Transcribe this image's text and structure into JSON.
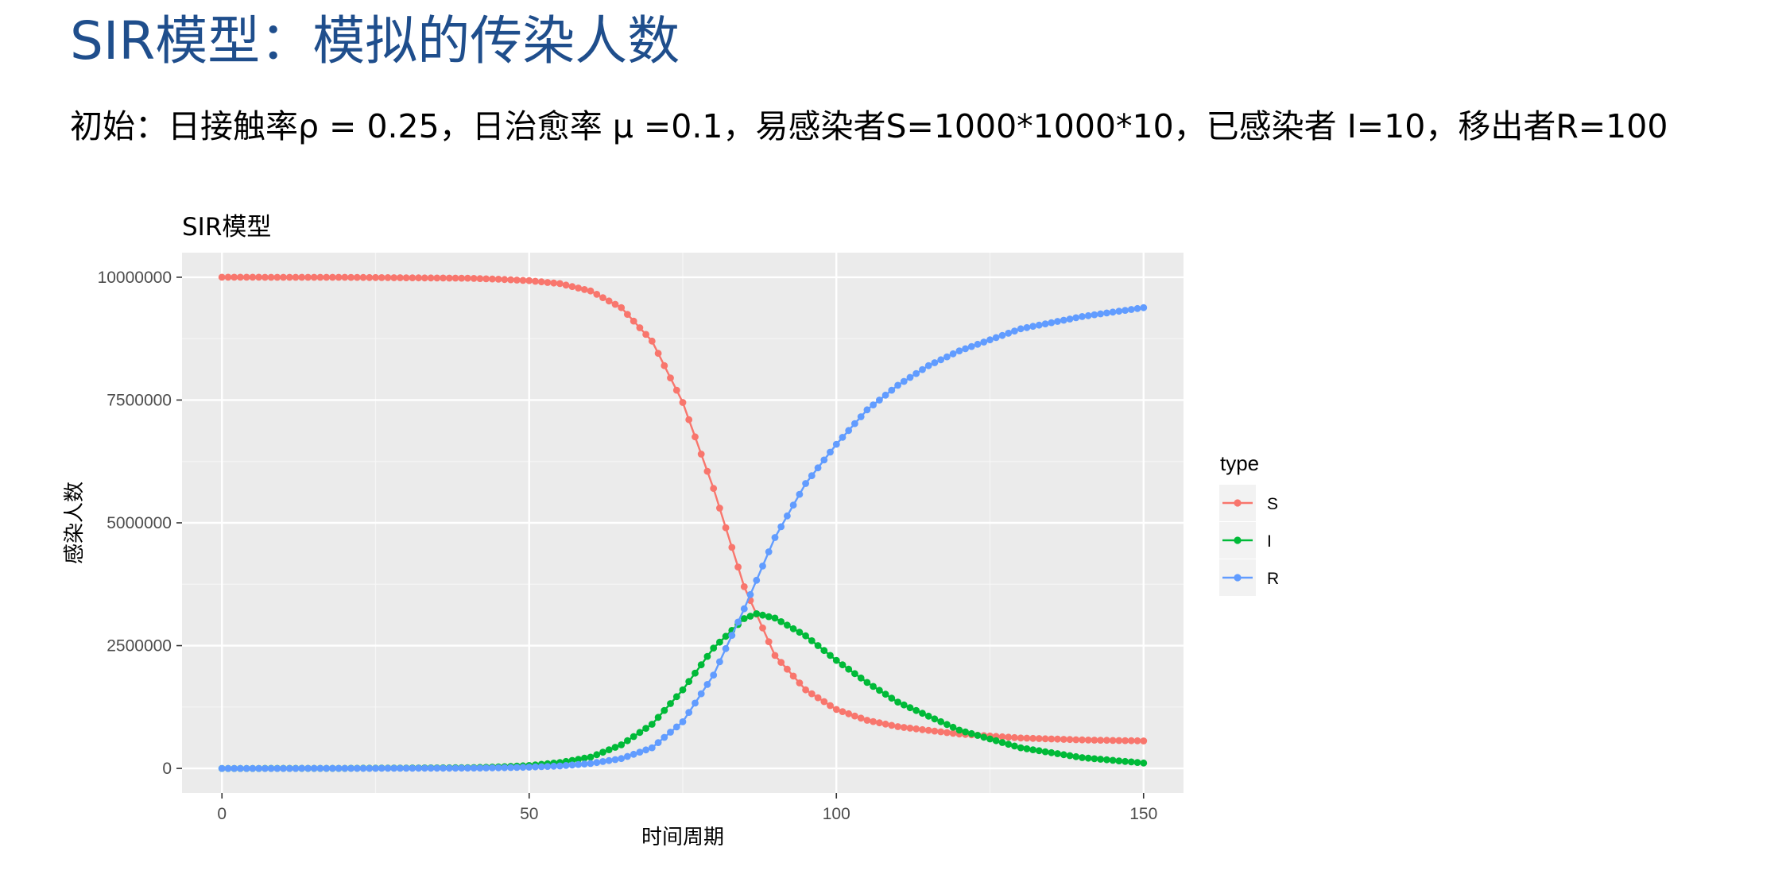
{
  "slide": {
    "title": "SIR模型：模拟的传染人数",
    "subtitle": "初始：日接触率ρ = 0.25，日治愈率 μ =0.1，易感染者S=1000*1000*10，已感染者 I=10，移出者R=100"
  },
  "chart_data": {
    "type": "line",
    "title": "SIR模型",
    "xlabel": "时间周期",
    "ylabel": "感染人数",
    "xlim": [
      -6.5,
      156.5
    ],
    "ylim": [
      -500000,
      10500000
    ],
    "x_ticks": [
      0,
      50,
      100,
      150
    ],
    "x_tick_labels": [
      "0",
      "50",
      "100",
      "150"
    ],
    "y_ticks": [
      0,
      2500000,
      5000000,
      7500000,
      10000000
    ],
    "y_tick_labels": [
      "0",
      "2500000",
      "5000000",
      "7500000",
      "10000000"
    ],
    "grid": true,
    "legend": {
      "title": "type",
      "position": "right"
    },
    "series": [
      {
        "name": "S",
        "color": "#F8766D",
        "x": [
          0,
          20,
          40,
          45,
          50,
          55,
          60,
          65,
          70,
          75,
          80,
          85,
          90,
          95,
          100,
          105,
          110,
          120,
          130,
          140,
          150
        ],
        "y": [
          10000000,
          9998000,
          9980000,
          9960000,
          9930000,
          9870000,
          9720000,
          9380000,
          8700000,
          7450000,
          5700000,
          3700000,
          2300000,
          1600000,
          1200000,
          980000,
          850000,
          700000,
          620000,
          580000,
          560000
        ]
      },
      {
        "name": "I",
        "color": "#00BA38",
        "x": [
          0,
          20,
          40,
          45,
          50,
          55,
          60,
          65,
          70,
          75,
          80,
          85,
          87,
          90,
          95,
          100,
          105,
          110,
          120,
          130,
          140,
          150
        ],
        "y": [
          10,
          2000,
          15000,
          30000,
          60000,
          120000,
          230000,
          480000,
          900000,
          1600000,
          2450000,
          3050000,
          3150000,
          3060000,
          2700000,
          2200000,
          1750000,
          1350000,
          780000,
          420000,
          220000,
          110000
        ]
      },
      {
        "name": "R",
        "color": "#619CFF",
        "x": [
          0,
          20,
          40,
          45,
          50,
          55,
          60,
          65,
          70,
          75,
          80,
          85,
          90,
          95,
          100,
          105,
          110,
          115,
          120,
          130,
          140,
          150
        ],
        "y": [
          100,
          1000,
          6000,
          12000,
          25000,
          50000,
          100000,
          200000,
          420000,
          950000,
          1900000,
          3250000,
          4700000,
          5800000,
          6600000,
          7300000,
          7800000,
          8200000,
          8500000,
          8950000,
          9200000,
          9380000
        ]
      }
    ]
  }
}
